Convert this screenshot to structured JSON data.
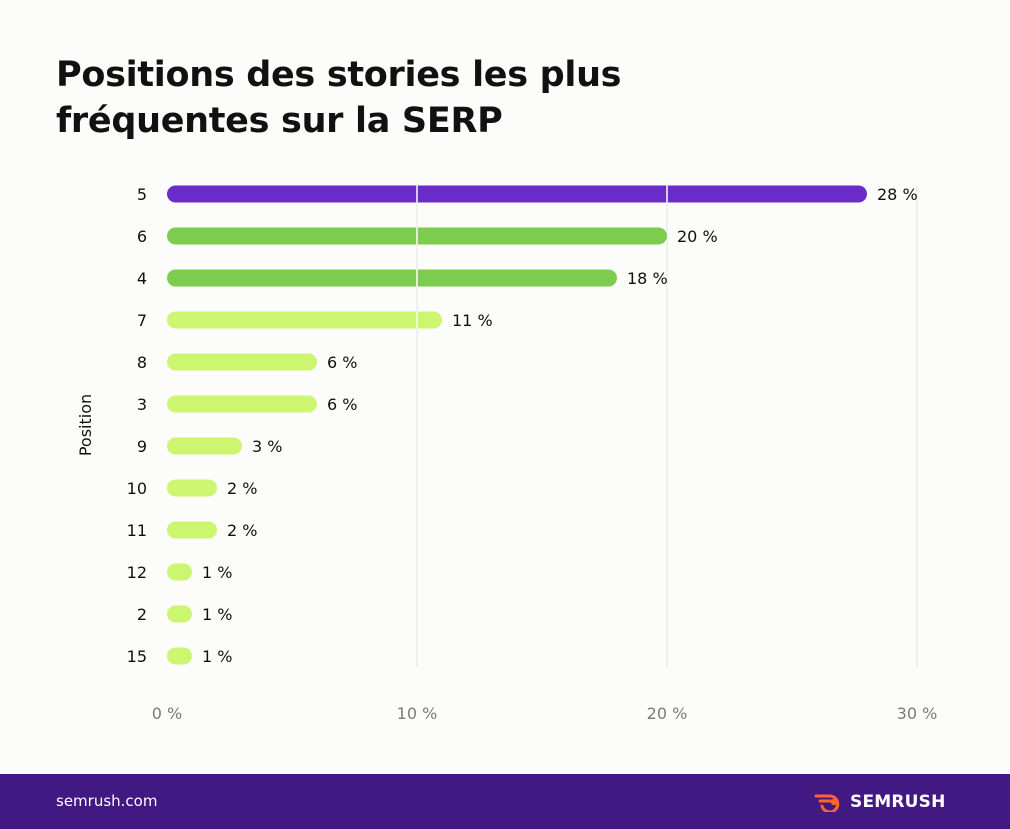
{
  "title": "Positions des stories les plus fréquentes sur la SERP",
  "colors": {
    "background": "#fcfcfb",
    "top": "#6a2cc8",
    "high": "#7ccd4e",
    "low": "#cdf670",
    "grid": "#e4e4e4",
    "footer": "#421983",
    "logo_accent": "#ff642d"
  },
  "chart_data": {
    "type": "bar",
    "orientation": "horizontal",
    "title": "Positions des stories les plus fréquentes sur la SERP",
    "ylabel": "Position",
    "xlabel": "",
    "xlim": [
      0,
      30
    ],
    "xticks": [
      0,
      10,
      20,
      30
    ],
    "xtick_labels": [
      "0 %",
      "10 %",
      "20 %",
      "30 %"
    ],
    "grid": true,
    "categories": [
      "5",
      "6",
      "4",
      "7",
      "8",
      "3",
      "9",
      "10",
      "11",
      "12",
      "2",
      "15"
    ],
    "values": [
      28,
      20,
      18,
      11,
      6,
      6,
      3,
      2,
      2,
      1,
      1,
      1
    ],
    "value_labels": [
      "28 %",
      "20 %",
      "18 %",
      "11 %",
      "6 %",
      "6 %",
      "3 %",
      "2 %",
      "2 %",
      "1 %",
      "1 %",
      "1 %"
    ],
    "bar_colors": [
      "top",
      "high",
      "high",
      "low",
      "low",
      "low",
      "low",
      "low",
      "low",
      "low",
      "low",
      "low"
    ]
  },
  "footer": {
    "url": "semrush.com",
    "brand": "SEMRUSH"
  }
}
